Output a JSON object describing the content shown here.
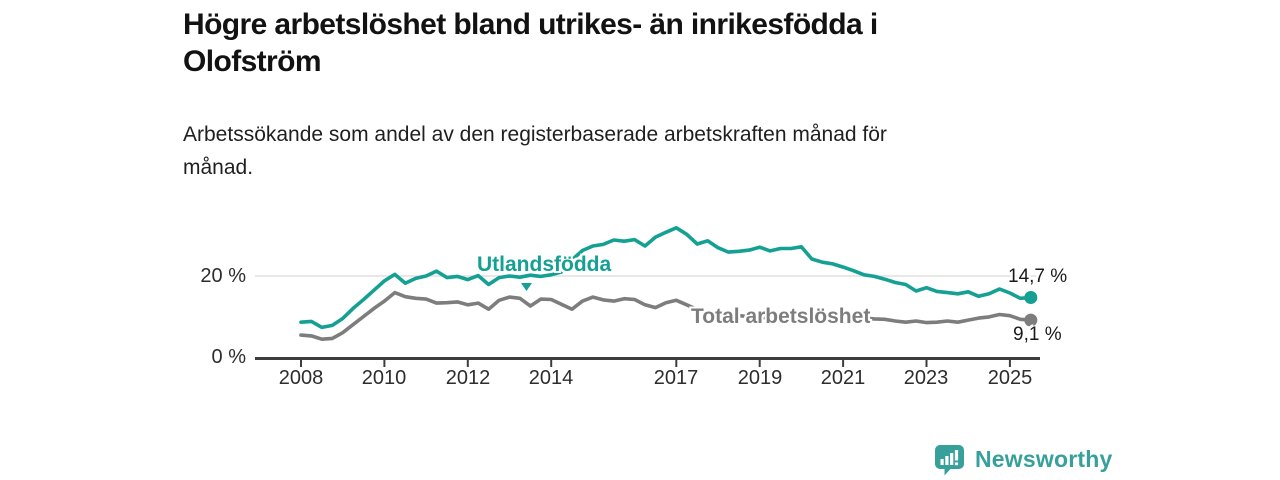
{
  "header": {
    "title_lines": [
      "Högre arbetslöshet bland utrikes- än inrikesfödda i",
      "Olofström"
    ],
    "subtitle_lines": [
      "Arbetssökande som andel av den registerbaserade arbetskraften månad för",
      "månad."
    ]
  },
  "chart_data": {
    "type": "line",
    "title": "Högre arbetslöshet bland utrikes- än inrikesfödda i Olofström",
    "subtitle": "Arbetssökande som andel av den registerbaserade arbetskraften månad för månad.",
    "unit": "%",
    "grid": "horizontal-only",
    "legend": "inline-labels",
    "ylim": [
      0,
      33.5
    ],
    "xlim": [
      2006.9,
      2025.7
    ],
    "x": [
      2008,
      2008.25,
      2008.5,
      2008.75,
      2009,
      2009.25,
      2009.5,
      2009.75,
      2010,
      2010.25,
      2010.5,
      2010.75,
      2011,
      2011.25,
      2011.5,
      2011.75,
      2012,
      2012.25,
      2012.5,
      2012.75,
      2013,
      2013.25,
      2013.5,
      2013.75,
      2014,
      2014.25,
      2014.5,
      2014.75,
      2015,
      2015.25,
      2015.5,
      2015.75,
      2016,
      2016.25,
      2016.5,
      2016.75,
      2017,
      2017.25,
      2017.5,
      2017.75,
      2018,
      2018.25,
      2018.5,
      2018.75,
      2019,
      2019.25,
      2019.5,
      2019.75,
      2020,
      2020.25,
      2020.5,
      2020.75,
      2021,
      2021.25,
      2021.5,
      2021.75,
      2022,
      2022.25,
      2022.5,
      2022.75,
      2023,
      2023.25,
      2023.5,
      2023.75,
      2024,
      2024.25,
      2024.5,
      2024.75,
      2025,
      2025.25,
      2025.5
    ],
    "series": [
      {
        "name": "Utlandsfödda",
        "color": "#15a094",
        "end_label": "14,7 %",
        "end_value": 14.7,
        "values": [
          8.6,
          8.8,
          7.3,
          7.8,
          9.5,
          12.0,
          14.2,
          16.5,
          18.8,
          20.4,
          18.2,
          19.4,
          20.0,
          21.2,
          19.6,
          19.9,
          19.1,
          20.1,
          17.9,
          19.6,
          20.0,
          19.7,
          20.2,
          19.9,
          20.3,
          21.0,
          24.0,
          26.3,
          27.4,
          27.8,
          28.9,
          28.6,
          29.0,
          27.4,
          29.6,
          30.8,
          31.9,
          30.3,
          27.9,
          28.7,
          27.0,
          25.9,
          26.1,
          26.4,
          27.1,
          26.2,
          26.8,
          26.8,
          27.2,
          24.2,
          23.4,
          23.0,
          22.2,
          21.3,
          20.3,
          19.9,
          19.2,
          18.4,
          17.9,
          16.3,
          17.1,
          16.2,
          15.9,
          15.6,
          16.1,
          15.0,
          15.6,
          16.8,
          15.8,
          14.5,
          14.7
        ]
      },
      {
        "name": "Total arbetslöshet",
        "color": "#7d7d7d",
        "end_label": "9,1 %",
        "end_value": 9.1,
        "values": [
          5.4,
          5.2,
          4.4,
          4.6,
          6.0,
          8.0,
          10.0,
          12.0,
          13.8,
          15.9,
          14.9,
          14.5,
          14.3,
          13.3,
          13.4,
          13.6,
          12.9,
          13.3,
          11.8,
          14.0,
          14.8,
          14.5,
          12.6,
          14.3,
          14.2,
          13.0,
          11.8,
          13.8,
          14.8,
          14.1,
          13.8,
          14.4,
          14.2,
          12.9,
          12.2,
          13.4,
          14.0,
          12.9,
          11.7,
          11.2,
          10.8,
          10.4,
          10.2,
          10.0,
          9.8,
          9.6,
          9.5,
          9.7,
          10.2,
          11.0,
          10.8,
          10.5,
          10.2,
          9.9,
          9.6,
          9.4,
          9.3,
          8.9,
          8.6,
          8.9,
          8.5,
          8.6,
          8.9,
          8.6,
          9.1,
          9.6,
          9.9,
          10.5,
          10.2,
          9.3,
          9.1
        ]
      }
    ],
    "y_ticks": [
      {
        "value": 20,
        "label": "20 %"
      },
      {
        "value": 0,
        "label": "0 %"
      }
    ],
    "x_ticks": [
      {
        "year": 2008,
        "label": "2008"
      },
      {
        "year": 2010,
        "label": "2010"
      },
      {
        "year": 2012,
        "label": "2012"
      },
      {
        "year": 2014,
        "label": "2014"
      },
      {
        "year": 2017,
        "label": "2017"
      },
      {
        "year": 2019,
        "label": "2019"
      },
      {
        "year": 2021,
        "label": "2021"
      },
      {
        "year": 2023,
        "label": "2023"
      },
      {
        "year": 2025,
        "label": "2025"
      }
    ]
  },
  "footer": {
    "brand": "Newsworthy",
    "brand_color": "#38a09a",
    "logo_icon": "bar-chart-speech-bubble"
  }
}
